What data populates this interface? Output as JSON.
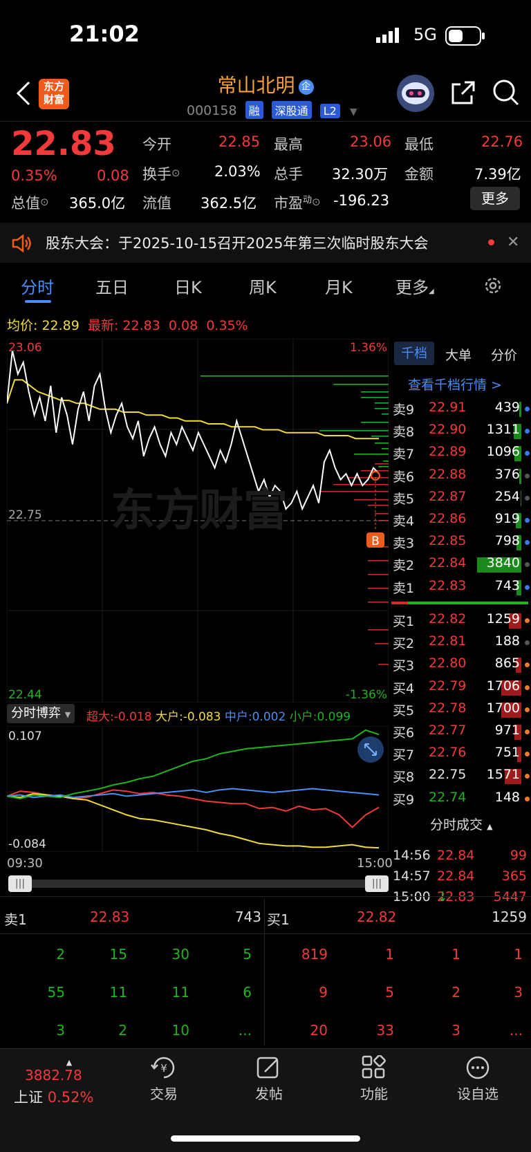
{
  "status_bar": {
    "time": "21:02",
    "network": "5G"
  },
  "header": {
    "logo_text": "东方财富",
    "stock_name": "常山北明",
    "stock_tag": "企",
    "stock_code": "000158",
    "badges": [
      "融",
      "深股通",
      "L2"
    ]
  },
  "quote": {
    "price": "22.83",
    "change_pct": "0.35%",
    "change": "0.08",
    "open_label": "今开",
    "open": "22.85",
    "high_label": "最高",
    "high": "23.06",
    "low_label": "最低",
    "low": "22.76",
    "turnover_label": "换手",
    "turnover": "2.03%",
    "volume_label": "总手",
    "volume": "32.30万",
    "amount_label": "金额",
    "amount": "7.39亿",
    "mktcap_label": "总值",
    "mktcap": "365.0亿",
    "float_label": "流值",
    "float": "362.5亿",
    "pe_label": "市盈",
    "pe_sup": "动",
    "pe": "-196.23",
    "more_label": "更多"
  },
  "notice": {
    "text": "股东大会：于2025-10-15召开2025年第三次临时股东大会"
  },
  "tabs": [
    "分时",
    "五日",
    "日K",
    "周K",
    "月K",
    "更多"
  ],
  "chart_header": {
    "avg_label": "均价:",
    "avg": "22.89",
    "latest_label": "最新:",
    "latest": "22.83",
    "latest_change": "0.08",
    "latest_pct": "0.35%"
  },
  "chart_labels": {
    "top_price": "23.06",
    "top_pct": "1.36%",
    "bottom_price": "22.44",
    "bottom_pct": "-1.36%",
    "ref_price": "22.75",
    "watermark": "东方财富",
    "marker": "B"
  },
  "chart_data": [
    {
      "type": "line",
      "title": "",
      "x_range": [
        "09:30",
        "15:00"
      ],
      "ylim": [
        22.44,
        23.06
      ],
      "reference": 22.75,
      "series": [
        {
          "name": "最新",
          "color": "#ffffff",
          "values": [
            22.95,
            23.04,
            23.0,
            23.02,
            22.97,
            22.93,
            22.96,
            22.92,
            22.98,
            22.9,
            22.96,
            22.93,
            22.88,
            22.94,
            22.97,
            22.92,
            22.98,
            23.0,
            22.94,
            22.9,
            22.93,
            22.95,
            22.91,
            22.89,
            22.92,
            22.86,
            22.89,
            22.91,
            22.88,
            22.86,
            22.9,
            22.88,
            22.91,
            22.89,
            22.87,
            22.9,
            22.88,
            22.86,
            22.84,
            22.87,
            22.85,
            22.88,
            22.92,
            22.89,
            22.86,
            22.83,
            22.8,
            22.82,
            22.79,
            22.81,
            22.8,
            22.77,
            22.78,
            22.8,
            22.77,
            22.79,
            22.81,
            22.78,
            22.85,
            22.87,
            22.84,
            22.82,
            22.83,
            22.81,
            22.83,
            22.81,
            22.82,
            22.84,
            22.83
          ]
        },
        {
          "name": "均价",
          "color": "#f2dc3a",
          "values": [
            22.95,
            22.99,
            22.99,
            22.98,
            22.97,
            22.965,
            22.96,
            22.955,
            22.955,
            22.95,
            22.95,
            22.945,
            22.94,
            22.94,
            22.94,
            22.935,
            22.935,
            22.935,
            22.93,
            22.93,
            22.93,
            22.925,
            22.925,
            22.92,
            22.92,
            22.92,
            22.915,
            22.915,
            22.915,
            22.91,
            22.91,
            22.91,
            22.91,
            22.905,
            22.905,
            22.905,
            22.9,
            22.9,
            22.9,
            22.9,
            22.9,
            22.895,
            22.895,
            22.895,
            22.895,
            22.89,
            22.89,
            22.89,
            22.89
          ]
        }
      ]
    },
    {
      "type": "line",
      "title": "分时博弈",
      "x_range": [
        "09:30",
        "15:00"
      ],
      "ylim": [
        -0.084,
        0.107
      ],
      "series": [
        {
          "name": "超大",
          "color": "#f23a3a",
          "last": "-0.018",
          "values": [
            0.0,
            0.008,
            0.006,
            0.002,
            0.0,
            -0.004,
            -0.002,
            0.004,
            0.01,
            0.008,
            0.004,
            0.006,
            0.002,
            0.0,
            -0.004,
            -0.008,
            -0.01,
            -0.012,
            -0.012,
            -0.02,
            -0.018,
            -0.024,
            -0.016,
            -0.022,
            -0.02,
            -0.03,
            -0.05,
            -0.03,
            -0.018
          ]
        },
        {
          "name": "大户",
          "color": "#f2dc3a",
          "last": "-0.083",
          "values": [
            0.0,
            -0.002,
            0.004,
            0.002,
            0.0,
            -0.004,
            -0.006,
            -0.014,
            -0.022,
            -0.03,
            -0.036,
            -0.038,
            -0.042,
            -0.046,
            -0.05,
            -0.054,
            -0.06,
            -0.064,
            -0.07,
            -0.076,
            -0.078,
            -0.08,
            -0.08,
            -0.082,
            -0.082,
            -0.08,
            -0.078,
            -0.082,
            -0.083
          ]
        },
        {
          "name": "中户",
          "color": "#4a8ef5",
          "last": "0.002",
          "values": [
            0.0,
            0.002,
            -0.002,
            0.0,
            0.002,
            -0.002,
            0.0,
            0.002,
            0.004,
            0.0,
            0.002,
            0.004,
            0.006,
            0.008,
            0.01,
            0.006,
            0.01,
            0.012,
            0.01,
            0.008,
            0.006,
            0.008,
            0.01,
            0.012,
            0.01,
            0.008,
            0.006,
            0.004,
            0.002
          ]
        },
        {
          "name": "小户",
          "color": "#1fb41f",
          "last": "0.099",
          "values": [
            0.0,
            -0.004,
            0.002,
            0.0,
            -0.002,
            0.004,
            0.008,
            0.012,
            0.018,
            0.022,
            0.028,
            0.032,
            0.04,
            0.048,
            0.056,
            0.06,
            0.068,
            0.072,
            0.076,
            0.078,
            0.08,
            0.082,
            0.084,
            0.086,
            0.088,
            0.09,
            0.092,
            0.106,
            0.099
          ]
        }
      ]
    }
  ],
  "sub_chart": {
    "label": "分时博弈",
    "items": [
      {
        "label": "超大:",
        "value": "-0.018"
      },
      {
        "label": "大户:",
        "value": "-0.083"
      },
      {
        "label": "中户:",
        "value": "0.002"
      },
      {
        "label": "小户:",
        "value": "0.099"
      }
    ],
    "top": "0.107",
    "bottom": "-0.084",
    "start_time": "09:30",
    "end_time": "15:00"
  },
  "side_panel": {
    "tabs": [
      "千档",
      "大单",
      "分价"
    ],
    "link": "查看千档行情 >",
    "asks": [
      {
        "label": "卖9",
        "price": "22.91",
        "vol": "439",
        "bar": 0.02
      },
      {
        "label": "卖8",
        "price": "22.90",
        "vol": "1311",
        "bar": 0.08
      },
      {
        "label": "卖7",
        "price": "22.89",
        "vol": "1096",
        "bar": 0.07
      },
      {
        "label": "卖6",
        "price": "22.88",
        "vol": "376",
        "bar": 0.02
      },
      {
        "label": "卖5",
        "price": "22.87",
        "vol": "254",
        "bar": 0.01
      },
      {
        "label": "卖4",
        "price": "22.86",
        "vol": "919",
        "bar": 0.06
      },
      {
        "label": "卖3",
        "price": "22.85",
        "vol": "798",
        "bar": 0.05
      },
      {
        "label": "卖2",
        "price": "22.84",
        "vol": "3840",
        "bar": 0.46
      },
      {
        "label": "卖1",
        "price": "22.83",
        "vol": "743",
        "bar": 0.05
      }
    ],
    "bids": [
      {
        "label": "买1",
        "price": "22.82",
        "vol": "1259",
        "bar": 0.13
      },
      {
        "label": "买2",
        "price": "22.81",
        "vol": "188",
        "bar": 0.0
      },
      {
        "label": "买3",
        "price": "22.80",
        "vol": "865",
        "bar": 0.06
      },
      {
        "label": "买4",
        "price": "22.79",
        "vol": "1706",
        "bar": 0.21
      },
      {
        "label": "买5",
        "price": "22.78",
        "vol": "1700",
        "bar": 0.21
      },
      {
        "label": "买6",
        "price": "22.77",
        "vol": "971",
        "bar": 0.07
      },
      {
        "label": "买7",
        "price": "22.76",
        "vol": "751",
        "bar": 0.04
      },
      {
        "label": "买8",
        "price": "22.75",
        "vol": "1571",
        "bar": 0.17
      },
      {
        "label": "买9",
        "price": "22.74",
        "vol": "148",
        "bar": 0.0
      }
    ],
    "trades_label": "分时成交",
    "trades": [
      {
        "time": "14:56",
        "price": "22.84",
        "vol": "99"
      },
      {
        "time": "14:57",
        "price": "22.84",
        "vol": "365"
      },
      {
        "time": "15:00",
        "price": "22.83",
        "arrow": "↓",
        "vol": "5447"
      }
    ]
  },
  "bottom_book": {
    "ask_label": "卖1",
    "ask_price": "22.83",
    "ask_vol": "743",
    "bid_label": "买1",
    "bid_price": "22.82",
    "bid_vol": "1259",
    "ask_rows": [
      [
        "2",
        "15",
        "30",
        "5"
      ],
      [
        "55",
        "11",
        "11",
        "6"
      ],
      [
        "3",
        "2",
        "10",
        "..."
      ]
    ],
    "bid_rows": [
      [
        "819",
        "1",
        "1",
        "1"
      ],
      [
        "9",
        "5",
        "2",
        "3"
      ],
      [
        "20",
        "33",
        "3",
        "..."
      ]
    ]
  },
  "bottom_nav": {
    "index_value": "3882.78",
    "index_name": "上证",
    "index_pct": "0.52%",
    "items": [
      "交易",
      "发帖",
      "功能",
      "设自选"
    ]
  }
}
